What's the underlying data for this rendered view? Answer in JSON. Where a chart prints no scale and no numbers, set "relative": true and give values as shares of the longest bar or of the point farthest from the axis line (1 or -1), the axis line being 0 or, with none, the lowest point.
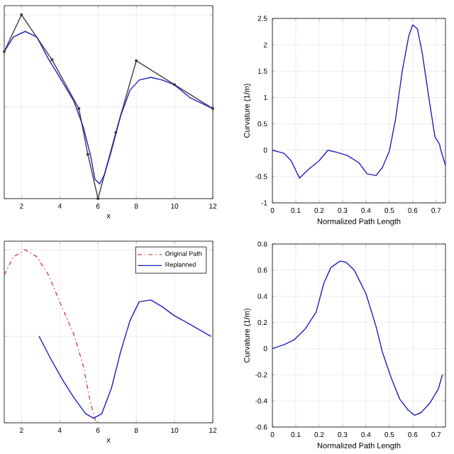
{
  "chart_data": [
    {
      "type": "line",
      "xlabel": "x",
      "relative": true,
      "xlim": [
        1.1,
        12
      ],
      "xticks": [
        2,
        4,
        6,
        8,
        10,
        12
      ],
      "grid": true,
      "series": [
        {
          "color": "#404040",
          "marker": "circle",
          "x": [
            1.1,
            2,
            3.6,
            5,
            5.47,
            6,
            6.93,
            8,
            10,
            12
          ],
          "values": [
            0.8,
            1.0,
            0.755,
            0.49,
            0.24,
            0,
            0.36,
            0.75,
            0.62,
            0.49
          ]
        },
        {
          "color": "#2020c0",
          "x": [
            1.1,
            1.58,
            2.19,
            2.8,
            3.41,
            4.0,
            4.74,
            5.23,
            5.6,
            5.84,
            6.09,
            6.33,
            6.7,
            7.18,
            7.67,
            8.15,
            8.76,
            9.37,
            9.98,
            10.8,
            12
          ],
          "values": [
            0.8,
            0.88,
            0.91,
            0.88,
            0.76,
            0.66,
            0.53,
            0.39,
            0.24,
            0.105,
            0.08,
            0.13,
            0.26,
            0.45,
            0.59,
            0.645,
            0.66,
            0.645,
            0.62,
            0.55,
            0.49
          ]
        }
      ]
    },
    {
      "type": "line",
      "xlabel": "Normalized Path Length",
      "ylabel": "Curvature (1/m)",
      "xlim": [
        0,
        0.74
      ],
      "xticks": [
        0,
        0.1,
        0.2,
        0.3,
        0.4,
        0.5,
        0.6,
        0.7
      ],
      "ylim": [
        -1,
        2.5
      ],
      "yticks": [
        -1,
        -0.5,
        0,
        0.5,
        1,
        1.5,
        2,
        2.5
      ],
      "grid": true,
      "series": [
        {
          "color": "#2020c0",
          "x": [
            0,
            0.05,
            0.08,
            0.116,
            0.153,
            0.2,
            0.237,
            0.275,
            0.32,
            0.37,
            0.405,
            0.443,
            0.47,
            0.5,
            0.527,
            0.555,
            0.583,
            0.6,
            0.62,
            0.64,
            0.667,
            0.695,
            0.714,
            0.72,
            0.74
          ],
          "values": [
            0,
            -0.06,
            -0.2,
            -0.53,
            -0.37,
            -0.2,
            0.0,
            -0.04,
            -0.1,
            -0.24,
            -0.45,
            -0.48,
            -0.33,
            -0.02,
            0.6,
            1.5,
            2.17,
            2.38,
            2.3,
            1.86,
            1.05,
            0.25,
            0.12,
            0.0,
            -0.29
          ]
        }
      ]
    },
    {
      "type": "line",
      "xlabel": "x",
      "relative": true,
      "xlim": [
        1.1,
        12
      ],
      "xticks": [
        2,
        4,
        6,
        8,
        10,
        12
      ],
      "grid": true,
      "legend": "top right",
      "series": [
        {
          "name": "Original Path",
          "color": "#e04040",
          "line_style": "dashed",
          "x": [
            1.1,
            1.58,
            2.19,
            2.8,
            3.41,
            4.0,
            4.74,
            5.23,
            5.6,
            5.9,
            6.09
          ],
          "values": [
            0.855,
            0.96,
            1.0,
            0.96,
            0.855,
            0.7,
            0.51,
            0.33,
            0.12,
            0,
            0.01
          ]
        },
        {
          "name": "Replanned",
          "color": "#2020c0",
          "x": [
            2.92,
            3.53,
            4.14,
            4.74,
            5.35,
            5.77,
            6.2,
            6.7,
            7.18,
            7.67,
            8.15,
            8.76,
            9.37,
            9.98,
            10.8,
            11.9
          ],
          "values": [
            0.5,
            0.37,
            0.25,
            0.145,
            0.053,
            0.026,
            0.053,
            0.2,
            0.41,
            0.59,
            0.7,
            0.71,
            0.67,
            0.62,
            0.57,
            0.5
          ]
        }
      ]
    },
    {
      "type": "line",
      "xlabel": "Normalized Path Length",
      "ylabel": "Curvature (1/m)",
      "xlim": [
        0,
        0.74
      ],
      "xticks": [
        0,
        0.1,
        0.2,
        0.3,
        0.4,
        0.5,
        0.6,
        0.7
      ],
      "ylim": [
        -0.6,
        0.8
      ],
      "yticks": [
        -0.6,
        -0.4,
        -0.2,
        0,
        0.2,
        0.4,
        0.6,
        0.8
      ],
      "grid": true,
      "series": [
        {
          "color": "#2020c0",
          "x": [
            0,
            0.05,
            0.095,
            0.14,
            0.187,
            0.22,
            0.25,
            0.29,
            0.315,
            0.35,
            0.4,
            0.443,
            0.47,
            0.507,
            0.544,
            0.58,
            0.608,
            0.635,
            0.672,
            0.709,
            0.727
          ],
          "values": [
            0,
            0.03,
            0.07,
            0.15,
            0.28,
            0.5,
            0.62,
            0.67,
            0.66,
            0.6,
            0.42,
            0.17,
            -0.025,
            -0.22,
            -0.385,
            -0.47,
            -0.51,
            -0.49,
            -0.42,
            -0.31,
            -0.2
          ]
        }
      ]
    }
  ]
}
